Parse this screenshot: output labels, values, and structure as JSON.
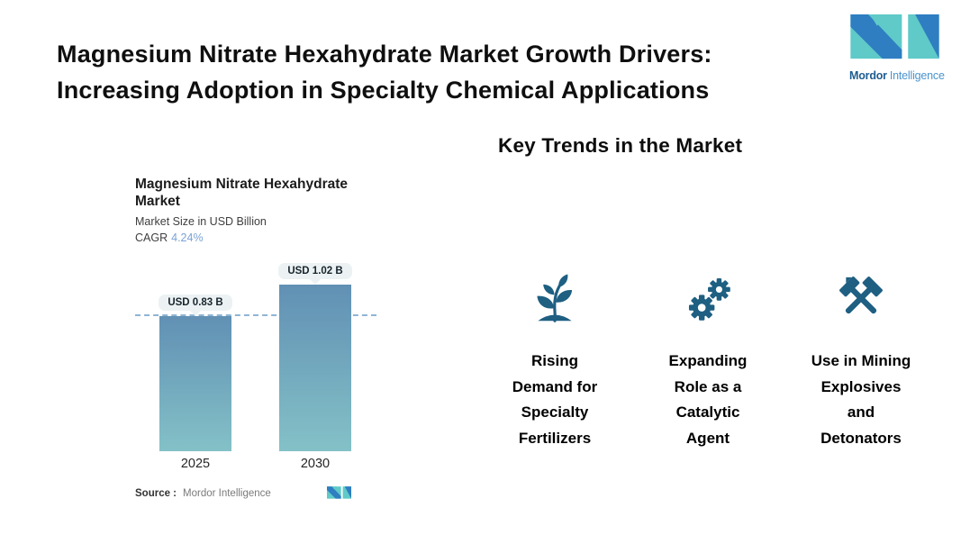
{
  "page_title": "Magnesium Nitrate Hexahydrate Market Growth Drivers:\nIncreasing Adoption in Specialty Chemical Applications",
  "brand": {
    "name_primary": "Mordor",
    "name_secondary": "Intelligence",
    "colors": {
      "teal": "#5FCAC8",
      "blue": "#2E7EC1",
      "text_primary": "#1D5D90",
      "text_secondary": "#4B94CD"
    }
  },
  "chart_data": {
    "type": "bar",
    "title": "Magnesium Nitrate Hexahydrate\nMarket",
    "subtitle": "Market Size in USD Billion",
    "cagr_label": "CAGR",
    "cagr_value": "4.24%",
    "categories": [
      "2025",
      "2030"
    ],
    "values": [
      0.83,
      1.02
    ],
    "value_labels": [
      "USD 0.83 B",
      "USD 1.02 B"
    ],
    "unit": "USD Billion",
    "ylim": [
      0,
      1.15
    ],
    "reference_line_at": 0.83,
    "grid": false,
    "source_label": "Source :",
    "source_value": "Mordor Intelligence",
    "colors": {
      "bar_top": "#6190B4",
      "bar_bottom": "#84C1C7",
      "dashed_line": "#8FB4D4",
      "value_pill_bg": "#ECF2F4",
      "cagr_accent": "#7AA3D6"
    }
  },
  "key_trends": {
    "heading": "Key Trends in the Market",
    "icon_color": "#1E5F82",
    "items": [
      {
        "icon": "seedling-icon",
        "label": "Rising\nDemand for\nSpecialty\nFertilizers"
      },
      {
        "icon": "gears-icon",
        "label": "Expanding\nRole as a\nCatalytic\nAgent"
      },
      {
        "icon": "crossed-hammers-icon",
        "label": "Use in Mining\nExplosives\nand\nDetonators"
      }
    ]
  }
}
